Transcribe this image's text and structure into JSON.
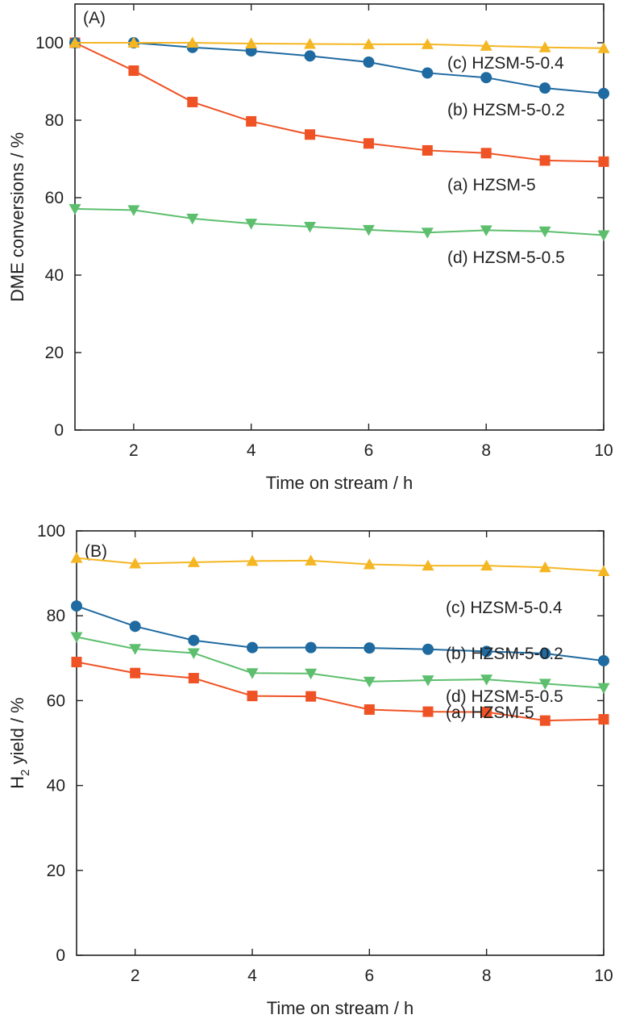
{
  "chart_data": [
    {
      "type": "line",
      "panel_tag": "(A)",
      "xlabel": "Time on stream / h",
      "ylabel": "DME conversions / %",
      "xlim": [
        1,
        10
      ],
      "ylim": [
        0,
        110
      ],
      "xticks": [
        2,
        4,
        6,
        8,
        10
      ],
      "yticks": [
        0,
        20,
        40,
        60,
        80,
        100
      ],
      "grid": false,
      "x": [
        1,
        2,
        3,
        4,
        5,
        6,
        7,
        8,
        9,
        10
      ],
      "series": [
        {
          "name": "(a) HZSM-5",
          "marker": "square",
          "color": "#ef5325",
          "values": [
            100.0,
            92.8,
            84.7,
            79.7,
            76.3,
            74.0,
            72.2,
            71.5,
            69.6,
            69.3
          ]
        },
        {
          "name": "(b) HZSM-5-0.2",
          "marker": "circle",
          "color": "#1f6aa0",
          "values": [
            100.0,
            100.0,
            98.8,
            97.9,
            96.6,
            95.0,
            92.2,
            91.0,
            88.3,
            86.9
          ]
        },
        {
          "name": "(c) HZSM-5-0.4",
          "marker": "triangle-up",
          "color": "#f5b623",
          "values": [
            100.0,
            100.0,
            100.0,
            99.8,
            99.7,
            99.6,
            99.6,
            99.2,
            98.8,
            98.6
          ]
        },
        {
          "name": "(d) HZSM-5-0.5",
          "marker": "triangle-down",
          "color": "#5dbf6e",
          "values": [
            57.1,
            56.8,
            54.6,
            53.3,
            52.5,
            51.7,
            51.0,
            51.6,
            51.3,
            50.3
          ]
        }
      ]
    },
    {
      "type": "line",
      "panel_tag": "(B)",
      "xlabel": "Time on stream / h",
      "ylabel_main": "H",
      "ylabel_sub": "2",
      "ylabel_rest": " yield / %",
      "xlim": [
        1,
        10
      ],
      "ylim": [
        0,
        100
      ],
      "xticks": [
        2,
        4,
        6,
        8,
        10
      ],
      "yticks": [
        0,
        20,
        40,
        60,
        80,
        100
      ],
      "grid": false,
      "x": [
        1,
        2,
        3,
        4,
        5,
        6,
        7,
        8,
        9,
        10
      ],
      "series": [
        {
          "name": "(a) HZSM-5",
          "marker": "square",
          "color": "#ef5325",
          "values": [
            69.1,
            66.5,
            65.3,
            61.1,
            61.0,
            57.9,
            57.4,
            57.3,
            55.3,
            55.6
          ]
        },
        {
          "name": "(b) HZSM-5-0.2",
          "marker": "circle",
          "color": "#1f6aa0",
          "values": [
            82.3,
            77.5,
            74.2,
            72.5,
            72.5,
            72.4,
            72.1,
            71.6,
            71.1,
            69.4
          ]
        },
        {
          "name": "(c) HZSM-5-0.4",
          "marker": "triangle-up",
          "color": "#f5b623",
          "values": [
            93.6,
            92.3,
            92.6,
            92.9,
            93.0,
            92.1,
            91.8,
            91.8,
            91.4,
            90.5
          ]
        },
        {
          "name": "(d) HZSM-5-0.5",
          "marker": "triangle-down",
          "color": "#5dbf6e",
          "values": [
            75.0,
            72.2,
            71.2,
            66.5,
            66.4,
            64.5,
            64.8,
            65.0,
            64.0,
            63.0
          ]
        }
      ]
    }
  ]
}
